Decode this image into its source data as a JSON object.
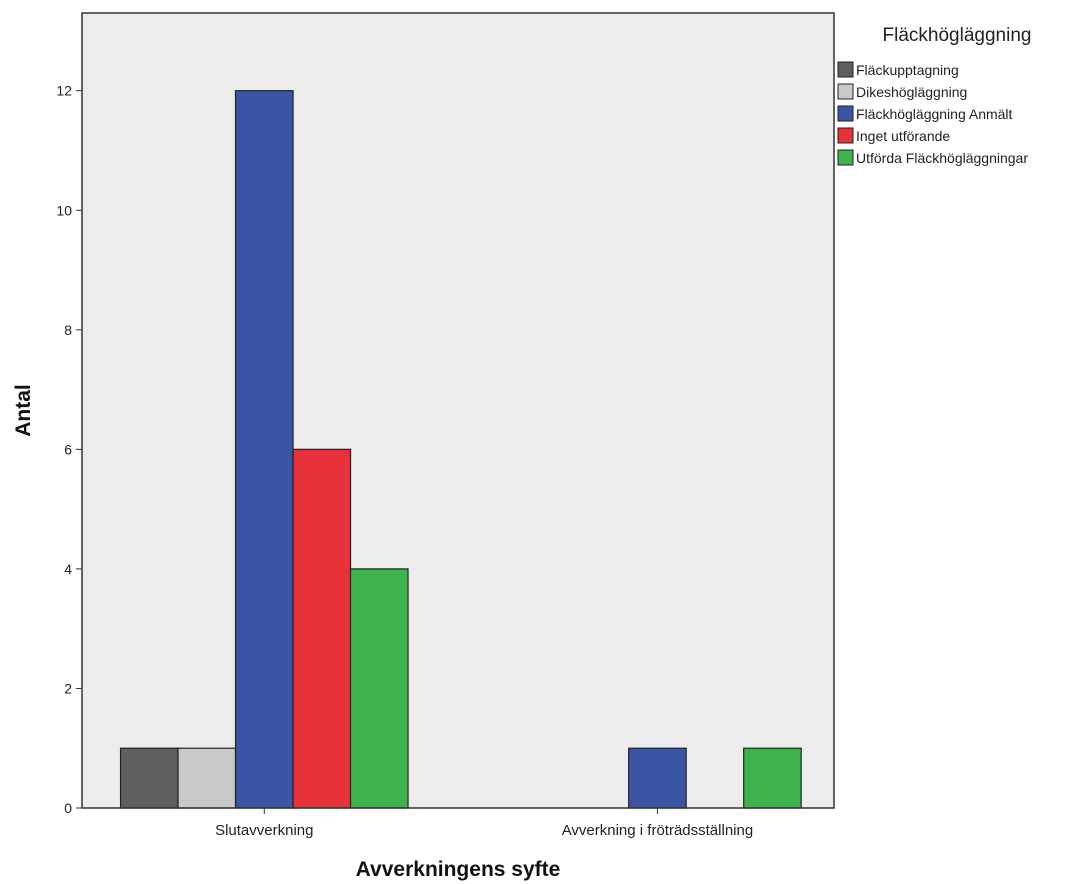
{
  "chart_data": {
    "type": "bar",
    "title": "",
    "xlabel": "Avverkningens syfte",
    "ylabel": "Antal",
    "ylim": [
      0,
      13.3
    ],
    "yticks": [
      0,
      2,
      4,
      6,
      8,
      10,
      12
    ],
    "grid": false,
    "legend_placement": "right",
    "legend_title": "Fläckhögläggning",
    "plot_background": "#ececec",
    "categories": [
      "Slutavverkning",
      "Avverkning i fröträdsställning"
    ],
    "series": [
      {
        "name": "Fläckupptagning",
        "color": "#5e5e5e",
        "values": [
          1,
          0
        ]
      },
      {
        "name": "Dikeshögläggning",
        "color": "#c9c9c9",
        "values": [
          1,
          0
        ]
      },
      {
        "name": "Fläckhögläggning Anmält",
        "color": "#3a55a4",
        "values": [
          12,
          1
        ]
      },
      {
        "name": "Inget utförande",
        "color": "#e8323a",
        "values": [
          6,
          0
        ]
      },
      {
        "name": "Utförda Fläckhögläggningar",
        "color": "#3cb44b",
        "values": [
          4,
          1
        ]
      }
    ]
  }
}
